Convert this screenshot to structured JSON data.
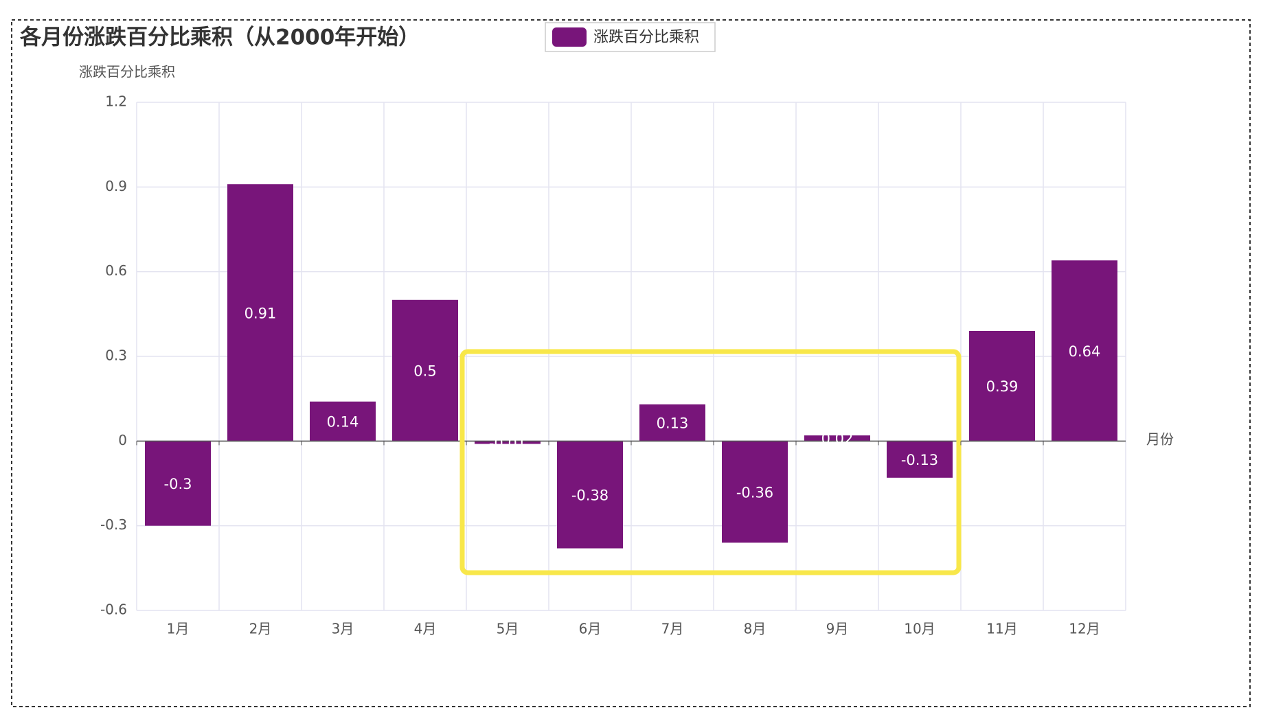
{
  "chart_data": {
    "type": "bar",
    "title": "各月份涨跌百分比乘积（从2000年开始）",
    "y_axis_label": "涨跌百分比乘积",
    "x_axis_label": "月份",
    "categories": [
      "1月",
      "2月",
      "3月",
      "4月",
      "5月",
      "6月",
      "7月",
      "8月",
      "9月",
      "10月",
      "11月",
      "12月"
    ],
    "series": [
      {
        "name": "涨跌百分比乘积",
        "color": "#78157a",
        "values": [
          -0.3,
          0.91,
          0.14,
          0.5,
          -0.01,
          -0.38,
          0.13,
          -0.36,
          0.02,
          -0.13,
          0.39,
          0.64
        ]
      }
    ],
    "ylim": [
      -0.6,
      1.2
    ],
    "yticks": [
      -0.6,
      -0.3,
      0,
      0.3,
      0.6,
      0.9,
      1.2
    ],
    "grid": true,
    "legend": "top"
  }
}
